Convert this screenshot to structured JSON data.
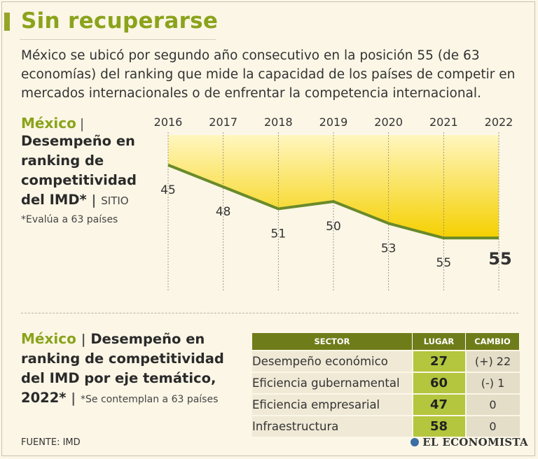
{
  "header": {
    "title": "Sin recuperarse",
    "intro": "México se ubicó por segundo año consecutivo en la posición 55 (de 63 economías) del ranking que mide la capacidad de los países de competir en mercados internacionales o de enfrentar la competencia internacional."
  },
  "chart_section": {
    "country": "México",
    "separator": "|",
    "title": "Desempeño en ranking de competitividad del IMD*",
    "unit": "SITIO",
    "note": "*Evalúa a 63 países"
  },
  "chart_data": {
    "type": "area",
    "x": [
      "2016",
      "2017",
      "2018",
      "2019",
      "2020",
      "2021",
      "2022"
    ],
    "series": [
      {
        "values": [
          45,
          48,
          51,
          50,
          53,
          55,
          55
        ]
      }
    ],
    "y_inverted": true,
    "ylim": [
      43,
      57
    ],
    "highlight_last": true,
    "colors": {
      "line": "#6a8a2a",
      "area_top": "#fff6bf",
      "area_bottom": "#f5d000"
    }
  },
  "table_section": {
    "country": "México",
    "separator": "|",
    "title": "Desempeño en ranking de competitividad del IMD por eje temático, 2022*",
    "note": "*Se contemplan a 63 países",
    "headers": {
      "sector": "SECTOR",
      "lugar": "LUGAR",
      "cambio": "CAMBIO"
    },
    "rows": [
      {
        "sector": "Desempeño económico",
        "lugar": "27",
        "cambio": "(+) 22"
      },
      {
        "sector": "Eficiencia gubernamental",
        "lugar": "60",
        "cambio": "(-) 1"
      },
      {
        "sector": "Eficiencia empresarial",
        "lugar": "47",
        "cambio": "0"
      },
      {
        "sector": "Infraestructura",
        "lugar": "58",
        "cambio": "0"
      }
    ]
  },
  "footer": {
    "source": "FUENTE: IMD",
    "brand": "EL ECONOMISTA"
  },
  "colors": {
    "accent": "#8ba31b",
    "table_header": "#6f7c1a",
    "lugar_bg": "#b3c63d"
  }
}
